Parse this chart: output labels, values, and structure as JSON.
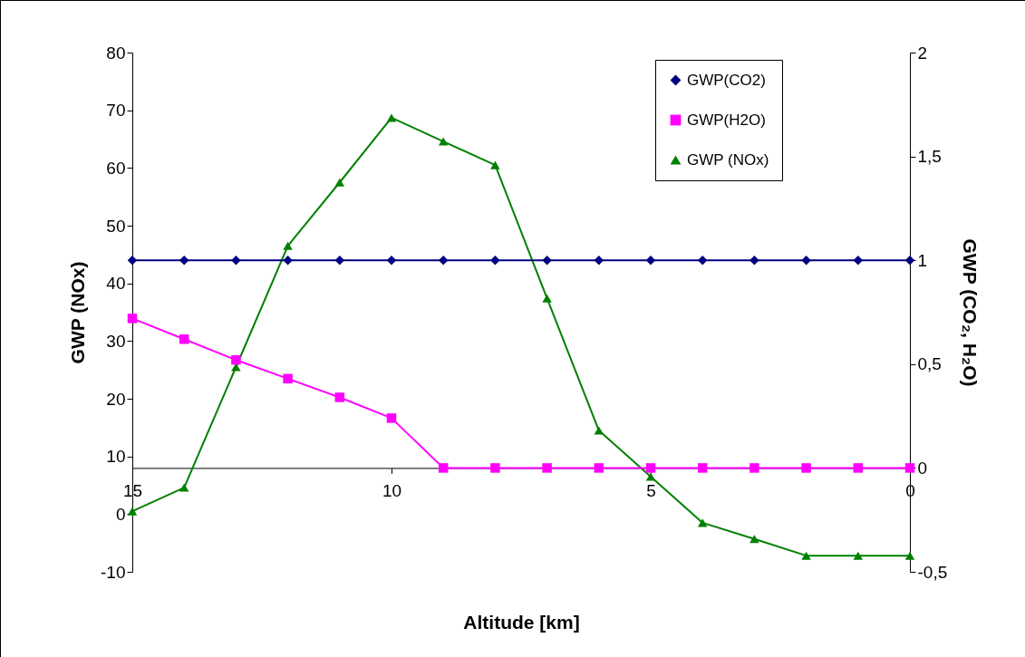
{
  "chart_data": {
    "type": "line",
    "xlabel": "Altitude [km]",
    "ylabel": "GWP (NOx)",
    "y2label": "GWP (CO₂, H₂O)",
    "x": [
      15,
      14,
      13,
      12,
      11,
      10,
      9,
      8,
      7,
      6,
      5,
      4,
      3,
      2,
      1,
      0
    ],
    "xlim": [
      15,
      0
    ],
    "xticks": [
      15,
      10,
      5,
      0
    ],
    "ylim": [
      -10,
      80
    ],
    "yticks": [
      -10,
      0,
      10,
      20,
      30,
      40,
      50,
      60,
      70,
      80
    ],
    "y2lim": [
      -0.5,
      2
    ],
    "y2ticks": [
      {
        "value": -0.5,
        "label": "-0,5"
      },
      0,
      {
        "value": 0.5,
        "label": "0,5"
      },
      1,
      {
        "value": 1.5,
        "label": "1,5"
      },
      2
    ],
    "grid": false,
    "legend": "top right",
    "series": [
      {
        "name": "GWP(CO2)",
        "color": "#000080",
        "marker": "diamond",
        "axis": "y2",
        "values": [
          1,
          1,
          1,
          1,
          1,
          1,
          1,
          1,
          1,
          1,
          1,
          1,
          1,
          1,
          1,
          1
        ]
      },
      {
        "name": "GWP(H2O)",
        "color": "#ff00ff",
        "marker": "square",
        "axis": "y2",
        "values": [
          0.72,
          0.62,
          0.52,
          0.43,
          0.34,
          0.24,
          0,
          0,
          0,
          0,
          0,
          0,
          0,
          0,
          0,
          0
        ]
      },
      {
        "name": "GWP (NOx)",
        "color": "#008000",
        "marker": "triangle",
        "values": [
          0.5,
          4.6,
          25.5,
          46.5,
          57.5,
          68.7,
          64.6,
          60.5,
          37.4,
          14.5,
          6.5,
          -1.5,
          -4.3,
          -7.2,
          -7.2,
          -7.2
        ]
      }
    ]
  }
}
